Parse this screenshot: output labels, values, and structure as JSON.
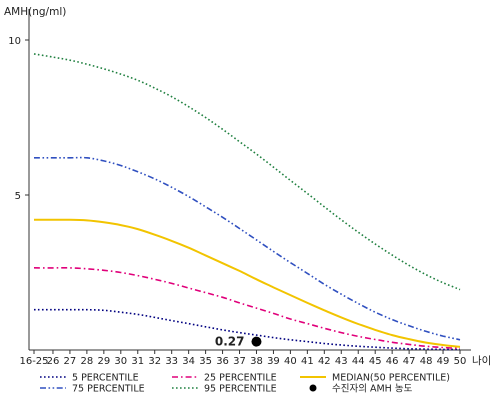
{
  "chart_data": {
    "type": "line",
    "ylabel": "AMH(ng/ml)",
    "xlabel": "나이",
    "categories": [
      "16-25",
      "26",
      "27",
      "28",
      "29",
      "30",
      "31",
      "32",
      "33",
      "34",
      "35",
      "36",
      "37",
      "38",
      "39",
      "40",
      "41",
      "42",
      "43",
      "44",
      "45",
      "46",
      "47",
      "48",
      "49",
      "50"
    ],
    "yticks": [
      5,
      10
    ],
    "ylim": [
      0,
      11
    ],
    "grid": false,
    "legend": "bottom",
    "series": [
      {
        "name": "5 PERCENTILE",
        "color": "#000080",
        "style": "dotted",
        "values": [
          1.3,
          1.3,
          1.3,
          1.3,
          1.28,
          1.22,
          1.15,
          1.05,
          0.95,
          0.85,
          0.75,
          0.65,
          0.56,
          0.48,
          0.4,
          0.33,
          0.27,
          0.21,
          0.16,
          0.12,
          0.09,
          0.06,
          0.04,
          0.03,
          0.02,
          0.02
        ]
      },
      {
        "name": "25 PERCENTILE",
        "color": "#e0007a",
        "style": "dashdot",
        "values": [
          2.65,
          2.65,
          2.65,
          2.62,
          2.57,
          2.5,
          2.4,
          2.28,
          2.15,
          2.0,
          1.85,
          1.7,
          1.52,
          1.35,
          1.18,
          1.0,
          0.85,
          0.7,
          0.56,
          0.44,
          0.34,
          0.25,
          0.18,
          0.12,
          0.08,
          0.05
        ]
      },
      {
        "name": "MEDIAN(50 PERCENTILE)",
        "color": "#f2c400",
        "style": "solid",
        "values": [
          4.2,
          4.2,
          4.2,
          4.18,
          4.12,
          4.03,
          3.9,
          3.72,
          3.52,
          3.3,
          3.05,
          2.8,
          2.55,
          2.28,
          2.02,
          1.77,
          1.52,
          1.28,
          1.05,
          0.84,
          0.65,
          0.48,
          0.35,
          0.24,
          0.16,
          0.1
        ]
      },
      {
        "name": "75 PERCENTILE",
        "color": "#3050c0",
        "style": "dashdotdot",
        "values": [
          6.2,
          6.2,
          6.2,
          6.2,
          6.1,
          5.95,
          5.75,
          5.52,
          5.25,
          4.95,
          4.62,
          4.28,
          3.92,
          3.55,
          3.18,
          2.82,
          2.47,
          2.12,
          1.8,
          1.5,
          1.22,
          0.98,
          0.78,
          0.6,
          0.45,
          0.33
        ]
      },
      {
        "name": "95 PERCENTILE",
        "color": "#208040",
        "style": "dotted",
        "values": [
          9.55,
          9.45,
          9.35,
          9.22,
          9.07,
          8.9,
          8.7,
          8.45,
          8.17,
          7.85,
          7.5,
          7.12,
          6.72,
          6.32,
          5.9,
          5.47,
          5.05,
          4.62,
          4.2,
          3.8,
          3.42,
          3.06,
          2.73,
          2.43,
          2.17,
          1.95
        ]
      }
    ],
    "highlight_point": {
      "name": "수진자의 AMH 농도",
      "x": "38",
      "y": 0.27,
      "label": "0.27",
      "color": "#000000"
    }
  }
}
